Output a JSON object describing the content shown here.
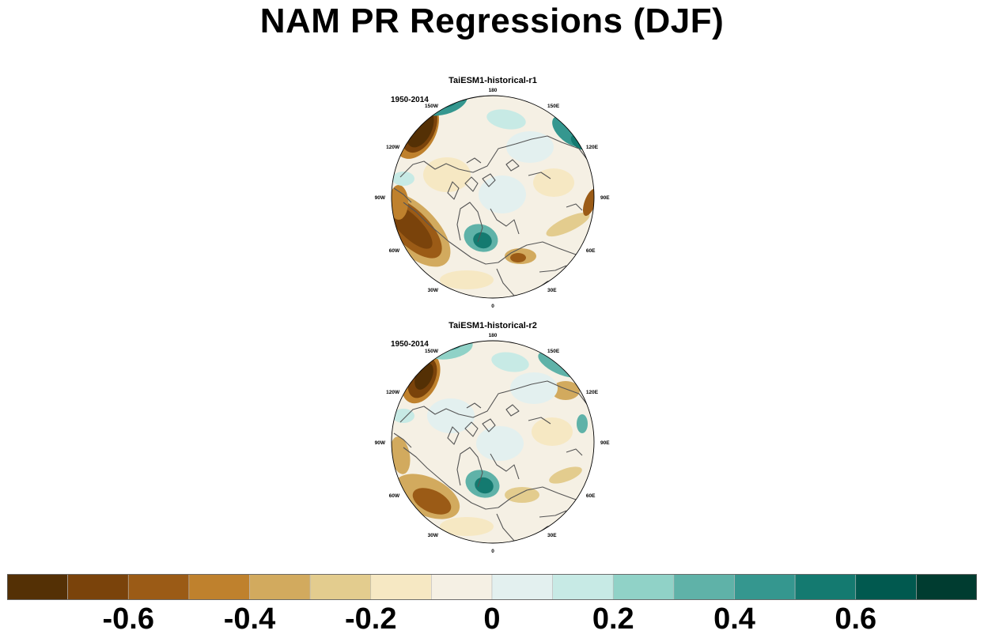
{
  "figure": {
    "title": "NAM PR Regressions (DJF)"
  },
  "panels": [
    {
      "title": "TaiESM1-historical-r1",
      "period": "1950-2014"
    },
    {
      "title": "TaiESM1-historical-r2",
      "period": "1950-2014"
    }
  ],
  "longitude_labels": [
    "180",
    "150E",
    "120E",
    "90E",
    "60E",
    "30E",
    "0",
    "30W",
    "60W",
    "90W",
    "120W",
    "150W"
  ],
  "colorbar": {
    "colors": [
      "#543005",
      "#7a430b",
      "#9b5b16",
      "#bf812d",
      "#d2aa5e",
      "#e3cc8e",
      "#f6e8c3",
      "#f5f0e4",
      "#e3f0ef",
      "#c7eae5",
      "#90d2c7",
      "#5fb2a8",
      "#35978f",
      "#147a70",
      "#01594f",
      "#003c30"
    ],
    "labels": [
      {
        "text": "-0.6",
        "value": -0.6
      },
      {
        "text": "-0.4",
        "value": -0.4
      },
      {
        "text": "-0.2",
        "value": -0.2
      },
      {
        "text": "0",
        "value": 0
      },
      {
        "text": "0.2",
        "value": 0.2
      },
      {
        "text": "0.4",
        "value": 0.4
      },
      {
        "text": "0.6",
        "value": 0.6
      }
    ]
  }
}
